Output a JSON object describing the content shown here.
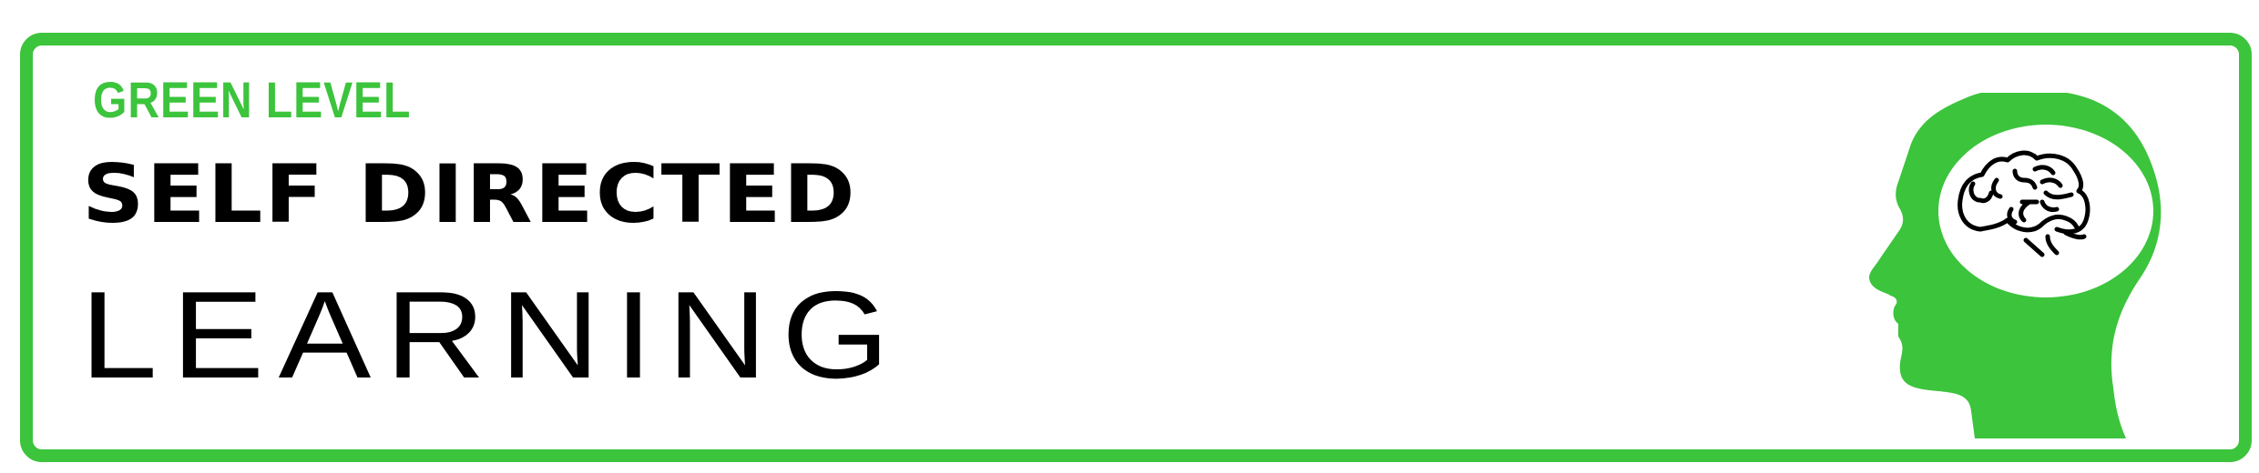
{
  "badge": {
    "level": "GREEN LEVEL",
    "title_line1": "SELF DIRECTED",
    "title_line2": "LEARNING"
  },
  "colors": {
    "accent": "#3cc43c",
    "text": "#000000",
    "background": "#ffffff"
  },
  "icons": {
    "head": "head-silhouette-icon",
    "brain": "brain-icon"
  }
}
